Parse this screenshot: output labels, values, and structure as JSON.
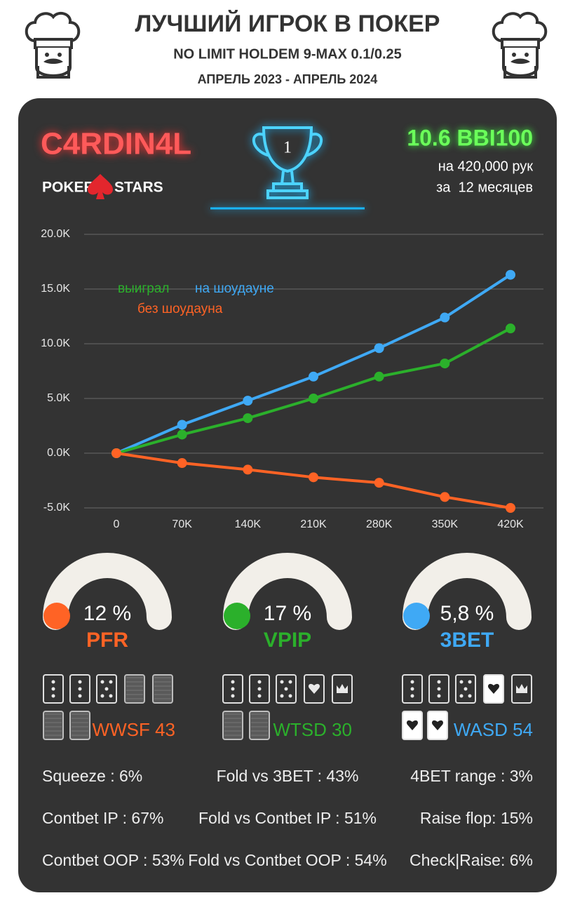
{
  "header": {
    "title": "ЛУЧШИЙ ИГРОК В ПОКЕР",
    "subtitle": "NO LIMIT HOLDEM 9-MAX 0.1/0.25",
    "period": "АПРЕЛЬ 2023 - АПРЕЛЬ 2024"
  },
  "player": {
    "name": "C4RDIN4L",
    "room_left": "POKER",
    "room_right": "STARS",
    "rank": "1",
    "winrate": "10.6 BBI100",
    "hands": "на 420,000 рук",
    "months": "за  12 месяцев"
  },
  "chart_data": {
    "type": "line",
    "x": [
      0,
      70000,
      140000,
      210000,
      280000,
      350000,
      420000
    ],
    "xlim": [
      0,
      420000
    ],
    "xticks": [
      0,
      {
        "value": 70000,
        "label": "70K"
      },
      {
        "value": 140000,
        "label": "140K"
      },
      {
        "value": 210000,
        "label": "210K"
      },
      {
        "value": 280000,
        "label": "280K"
      },
      {
        "value": 350000,
        "label": "350K"
      },
      {
        "value": 420000,
        "label": "420K"
      }
    ],
    "ylim": [
      -5000,
      20000
    ],
    "yticks": [
      {
        "value": -5000,
        "label": "-5.0K"
      },
      {
        "value": 0,
        "label": "0.0K"
      },
      {
        "value": 5000,
        "label": "5.0K"
      },
      {
        "value": 10000,
        "label": "10.0K"
      },
      {
        "value": 15000,
        "label": "15.0K"
      },
      {
        "value": 20000,
        "label": "20.0K"
      }
    ],
    "grid": true,
    "series": [
      {
        "name": "выиграл",
        "color": "#2bb02b",
        "values": [
          0,
          1700,
          3200,
          5000,
          7000,
          8200,
          11400
        ]
      },
      {
        "name": "на шоудауне",
        "color": "#3fa9f5",
        "values": [
          0,
          2600,
          4800,
          7000,
          9600,
          12400,
          16300
        ]
      },
      {
        "name": "без шоудауна",
        "color": "#ff6325",
        "values": [
          0,
          -900,
          -1500,
          -2200,
          -2700,
          -4000,
          -5000
        ]
      }
    ]
  },
  "gauges": [
    {
      "label": "PFR",
      "value": "12 %",
      "color": "#ff6325",
      "card_stat": "WWSF 43"
    },
    {
      "label": "VPIP",
      "value": "17 %",
      "color": "#2bb02b",
      "card_stat": "WTSD 30"
    },
    {
      "label": "3BET",
      "value": "5,8 %",
      "color": "#3fa9f5",
      "card_stat": "WASD 54"
    }
  ],
  "stats": {
    "rows": [
      [
        "Squeeze : 6%",
        "Fold vs 3BET : 43%",
        "4BET range : 3%"
      ],
      [
        "Contbet IP : 67%",
        "Fold vs Contbet IP : 51%",
        "Raise flop: 15%"
      ],
      [
        "Contbet OOP : 53%",
        "Fold vs Contbet OOP : 54%",
        "Check|Raise: 6%"
      ]
    ]
  }
}
